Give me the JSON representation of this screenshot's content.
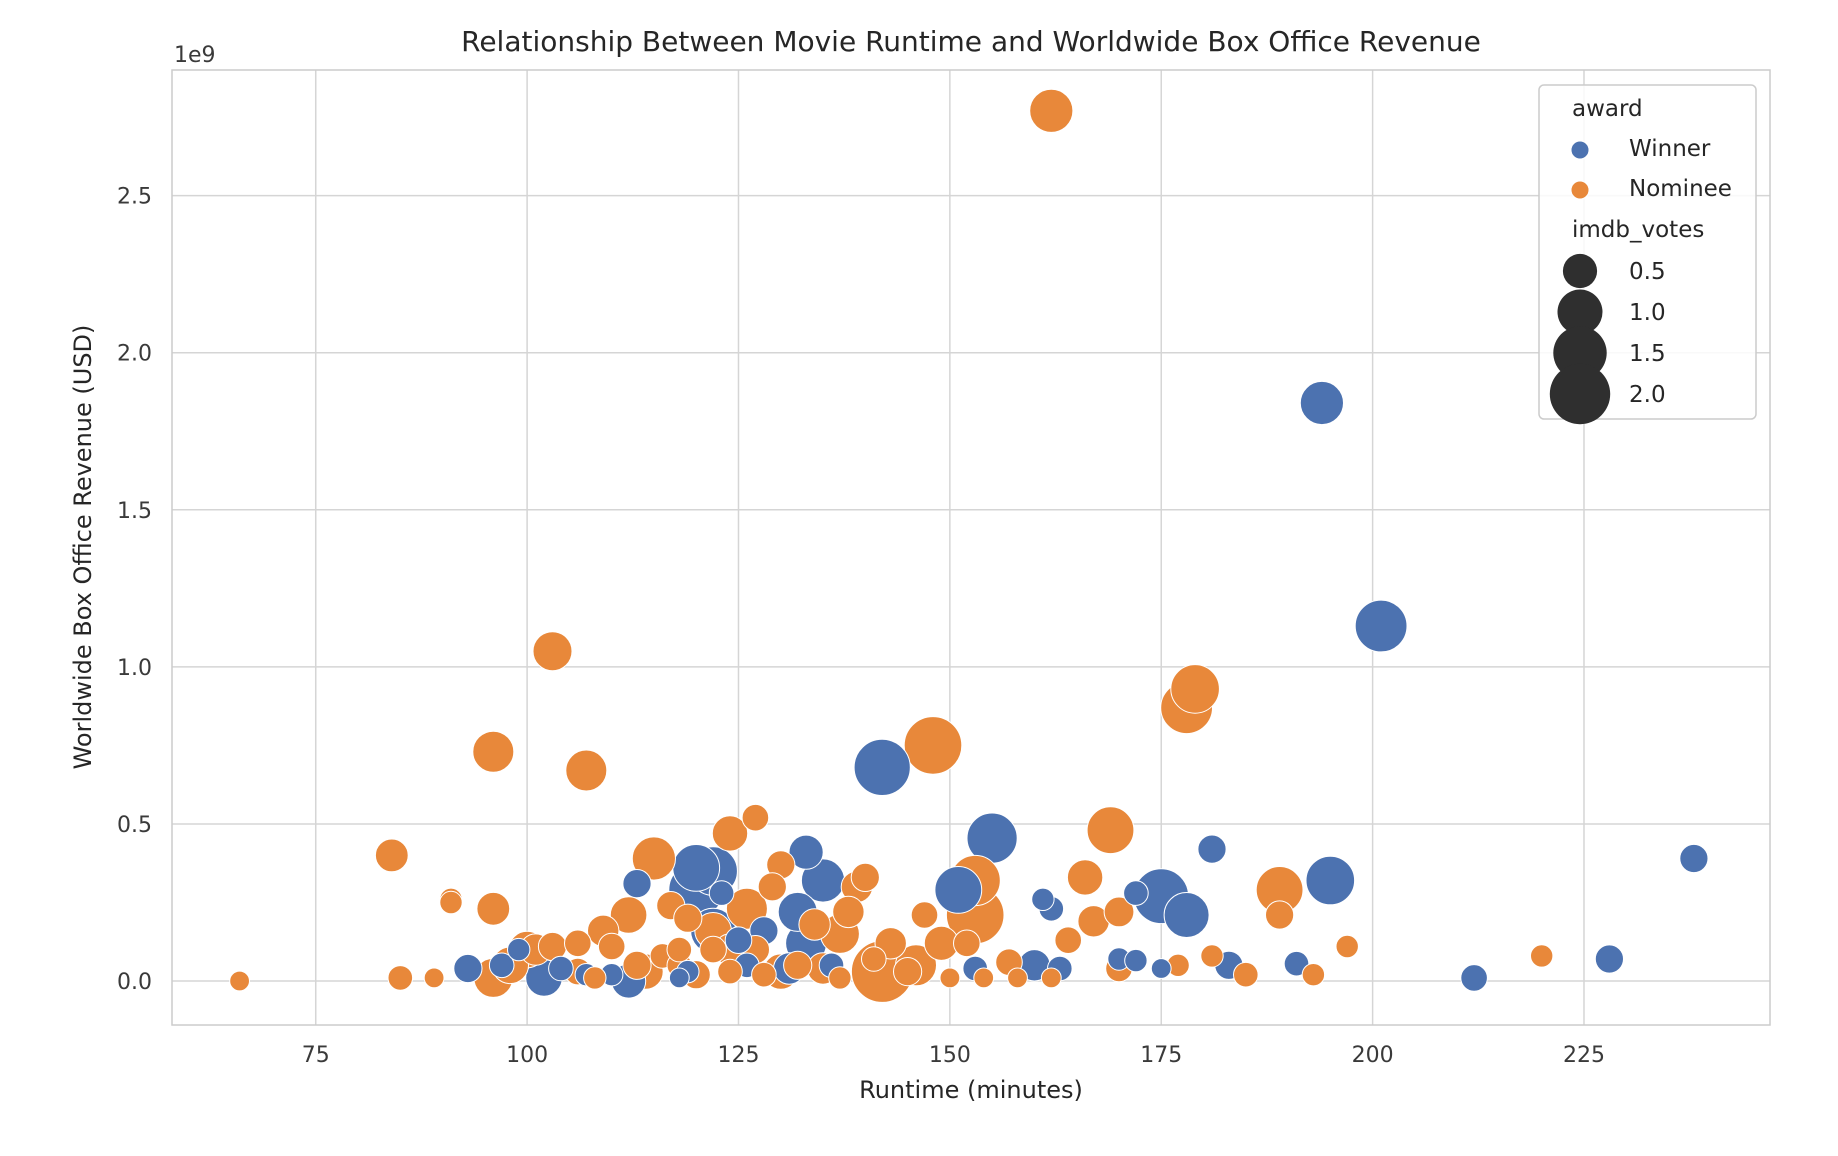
{
  "chart_data": {
    "type": "scatter",
    "title": "Relationship Between Movie Runtime and Worldwide Box Office Revenue",
    "xlabel": "Runtime (minutes)",
    "ylabel": "Worldwide Box Office Revenue (USD)",
    "y_offset_label": "1e9",
    "xlim": [
      58,
      247
    ],
    "ylim": [
      -0.14,
      2.9
    ],
    "x_ticks": [
      75,
      100,
      125,
      150,
      175,
      200,
      225
    ],
    "x_tick_labels": [
      "75",
      "100",
      "125",
      "150",
      "175",
      "200",
      "225"
    ],
    "y_ticks": [
      0.0,
      0.5,
      1.0,
      1.5,
      2.0,
      2.5
    ],
    "y_tick_labels": [
      "0.0",
      "0.5",
      "1.0",
      "1.5",
      "2.0",
      "2.5"
    ],
    "grid": true,
    "legend_placement": "top-right",
    "legend": {
      "hue_title": "award",
      "size_title": "imdb_votes",
      "hue_entries": [
        "Winner",
        "Nominee"
      ],
      "size_entries": [
        {
          "label": "0.5",
          "votes": 0.5
        },
        {
          "label": "1.0",
          "votes": 1.0
        },
        {
          "label": "1.5",
          "votes": 1.5
        },
        {
          "label": "2.0",
          "votes": 2.0
        }
      ]
    },
    "colors": {
      "Winner": "#4c72b0",
      "Nominee": "#e8883a"
    },
    "series": [
      {
        "name": "Winner",
        "points": [
          [
            194,
            1.84,
            0.9
          ],
          [
            201,
            1.13,
            1.4
          ],
          [
            155,
            0.455,
            1.3
          ],
          [
            142,
            0.68,
            1.7
          ],
          [
            195,
            0.32,
            1.2
          ],
          [
            175,
            0.27,
            1.6
          ],
          [
            178,
            0.21,
            1.0
          ],
          [
            151,
            0.29,
            1.1
          ],
          [
            181,
            0.42,
            0.3
          ],
          [
            238,
            0.39,
            0.3
          ],
          [
            172,
            0.28,
            0.2
          ],
          [
            120,
            0.29,
            1.6
          ],
          [
            122,
            0.35,
            1.2
          ],
          [
            120,
            0.36,
            1.1
          ],
          [
            135,
            0.32,
            0.9
          ],
          [
            133,
            0.41,
            0.5
          ],
          [
            132,
            0.22,
            0.7
          ],
          [
            122,
            0.16,
            1.0
          ],
          [
            113,
            0.31,
            0.3
          ],
          [
            123,
            0.28,
            0.2
          ],
          [
            128,
            0.16,
            0.3
          ],
          [
            133,
            0.12,
            0.8
          ],
          [
            131,
            0.04,
            0.4
          ],
          [
            126,
            0.05,
            0.2
          ],
          [
            102,
            0.01,
            0.6
          ],
          [
            112,
            0.0,
            0.5
          ],
          [
            107,
            0.02,
            0.15
          ],
          [
            99,
            0.1,
            0.15
          ],
          [
            97,
            0.05,
            0.2
          ],
          [
            93,
            0.04,
            0.3
          ],
          [
            118,
            0.01,
            0.1
          ],
          [
            153,
            0.04,
            0.2
          ],
          [
            160,
            0.05,
            0.4
          ],
          [
            163,
            0.04,
            0.2
          ],
          [
            161,
            0.26,
            0.15
          ],
          [
            162,
            0.23,
            0.2
          ],
          [
            170,
            0.07,
            0.15
          ],
          [
            172,
            0.065,
            0.15
          ],
          [
            175,
            0.04,
            0.1
          ],
          [
            183,
            0.05,
            0.3
          ],
          [
            191,
            0.055,
            0.2
          ],
          [
            212,
            0.01,
            0.25
          ],
          [
            228,
            0.07,
            0.3
          ],
          [
            136,
            0.05,
            0.2
          ],
          [
            119,
            0.03,
            0.15
          ],
          [
            110,
            0.02,
            0.15
          ],
          [
            104,
            0.04,
            0.2
          ],
          [
            125,
            0.13,
            0.25
          ]
        ]
      },
      {
        "name": "Nominee",
        "points": [
          [
            162,
            2.77,
            0.9
          ],
          [
            103,
            1.05,
            0.7
          ],
          [
            96,
            0.73,
            0.8
          ],
          [
            107,
            0.67,
            0.8
          ],
          [
            148,
            0.75,
            1.8
          ],
          [
            179,
            0.93,
            1.2
          ],
          [
            178,
            0.87,
            1.4
          ],
          [
            169,
            0.48,
            1.1
          ],
          [
            153,
            0.21,
            1.8
          ],
          [
            153,
            0.32,
            1.3
          ],
          [
            189,
            0.29,
            1.1
          ],
          [
            84,
            0.4,
            0.45
          ],
          [
            91,
            0.26,
            0.15
          ],
          [
            91,
            0.25,
            0.15
          ],
          [
            96,
            0.23,
            0.45
          ],
          [
            115,
            0.39,
            0.9
          ],
          [
            124,
            0.47,
            0.55
          ],
          [
            127,
            0.52,
            0.25
          ],
          [
            130,
            0.37,
            0.3
          ],
          [
            140,
            0.33,
            0.3
          ],
          [
            139,
            0.3,
            0.4
          ],
          [
            129,
            0.3,
            0.3
          ],
          [
            126,
            0.23,
            0.8
          ],
          [
            112,
            0.21,
            0.6
          ],
          [
            109,
            0.16,
            0.4
          ],
          [
            117,
            0.24,
            0.3
          ],
          [
            119,
            0.2,
            0.3
          ],
          [
            122,
            0.16,
            0.6
          ],
          [
            138,
            0.22,
            0.4
          ],
          [
            137,
            0.15,
            0.7
          ],
          [
            143,
            0.12,
            0.4
          ],
          [
            149,
            0.12,
            0.5
          ],
          [
            152,
            0.12,
            0.25
          ],
          [
            147,
            0.21,
            0.25
          ],
          [
            166,
            0.33,
            0.55
          ],
          [
            167,
            0.19,
            0.4
          ],
          [
            170,
            0.22,
            0.35
          ],
          [
            164,
            0.13,
            0.25
          ],
          [
            142,
            0.03,
            2.1
          ],
          [
            146,
            0.05,
            0.8
          ],
          [
            134,
            0.18,
            0.4
          ],
          [
            100,
            0.1,
            0.6
          ],
          [
            98,
            0.05,
            0.6
          ],
          [
            96,
            0.01,
            0.7
          ],
          [
            101,
            0.1,
            0.4
          ],
          [
            103,
            0.11,
            0.3
          ],
          [
            106,
            0.12,
            0.25
          ],
          [
            110,
            0.11,
            0.25
          ],
          [
            114,
            0.03,
            0.55
          ],
          [
            113,
            0.05,
            0.3
          ],
          [
            116,
            0.08,
            0.2
          ],
          [
            120,
            0.02,
            0.3
          ],
          [
            124,
            0.1,
            0.4
          ],
          [
            127,
            0.1,
            0.3
          ],
          [
            130,
            0.03,
            0.55
          ],
          [
            132,
            0.05,
            0.3
          ],
          [
            135,
            0.04,
            0.4
          ],
          [
            137,
            0.01,
            0.15
          ],
          [
            141,
            0.07,
            0.2
          ],
          [
            145,
            0.03,
            0.3
          ],
          [
            157,
            0.06,
            0.25
          ],
          [
            170,
            0.04,
            0.25
          ],
          [
            177,
            0.05,
            0.15
          ],
          [
            181,
            0.08,
            0.15
          ],
          [
            185,
            0.02,
            0.2
          ],
          [
            189,
            0.21,
            0.3
          ],
          [
            193,
            0.02,
            0.15
          ],
          [
            197,
            0.11,
            0.15
          ],
          [
            220,
            0.08,
            0.15
          ],
          [
            66,
            0.0,
            0.1
          ],
          [
            85,
            0.01,
            0.2
          ],
          [
            89,
            0.01,
            0.1
          ],
          [
            106,
            0.03,
            0.25
          ],
          [
            108,
            0.01,
            0.15
          ],
          [
            118,
            0.05,
            0.2
          ],
          [
            154,
            0.01,
            0.1
          ],
          [
            158,
            0.01,
            0.1
          ],
          [
            162,
            0.01,
            0.1
          ],
          [
            150,
            0.01,
            0.1
          ],
          [
            128,
            0.02,
            0.2
          ],
          [
            124,
            0.03,
            0.2
          ],
          [
            122,
            0.1,
            0.25
          ],
          [
            118,
            0.1,
            0.2
          ]
        ]
      }
    ]
  }
}
